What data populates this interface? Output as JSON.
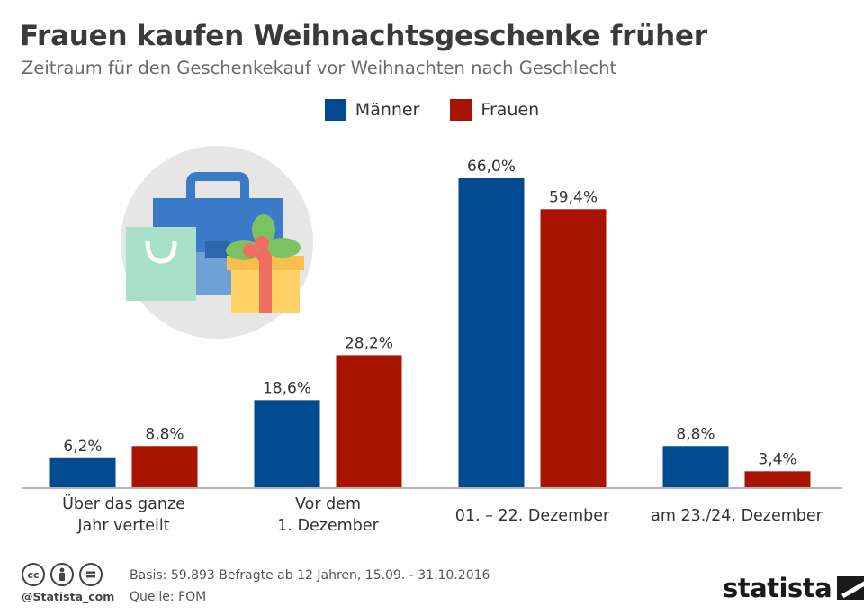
{
  "header": {
    "title": "Frauen kaufen Weihnachtsgeschenke früher",
    "subtitle": "Zeitraum für den Geschenkekauf vor Weihnachten nach Geschlecht"
  },
  "colors": {
    "maenner": "#004a8f",
    "frauen": "#a91400",
    "illustration_bg": "#e6e6e6"
  },
  "chart_data": {
    "type": "bar",
    "title": "Frauen kaufen Weihnachtsgeschenke früher",
    "subtitle": "Zeitraum für den Geschenkekauf vor Weihnachten nach Geschlecht",
    "categories": [
      [
        "Über das ganze",
        "Jahr verteilt"
      ],
      [
        "Vor dem",
        "1. Dezember"
      ],
      [
        "01. – 22. Dezember"
      ],
      [
        "am 23./24. Dezember"
      ]
    ],
    "series": [
      {
        "name": "Männer",
        "color": "#004a8f",
        "values": [
          6.2,
          18.6,
          66.0,
          8.8
        ],
        "labels": [
          "6,2%",
          "18,6%",
          "66,0%",
          "8,8%"
        ]
      },
      {
        "name": "Frauen",
        "color": "#a91400",
        "values": [
          8.8,
          28.2,
          59.4,
          3.4
        ],
        "labels": [
          "8,8%",
          "28,2%",
          "59,4%",
          "3,4%"
        ]
      }
    ],
    "ylim": [
      0,
      66
    ],
    "grid": false,
    "legend": "top-center"
  },
  "footer": {
    "cc_icons": [
      "cc-icon",
      "by-icon",
      "nd-icon"
    ],
    "handle": "@Statista_com",
    "basis": "Basis: 59.893 Befragte ab 12 Jahren, 15.09. - 31.10.2016",
    "quelle": "Quelle: FOM",
    "brand": "statista"
  }
}
